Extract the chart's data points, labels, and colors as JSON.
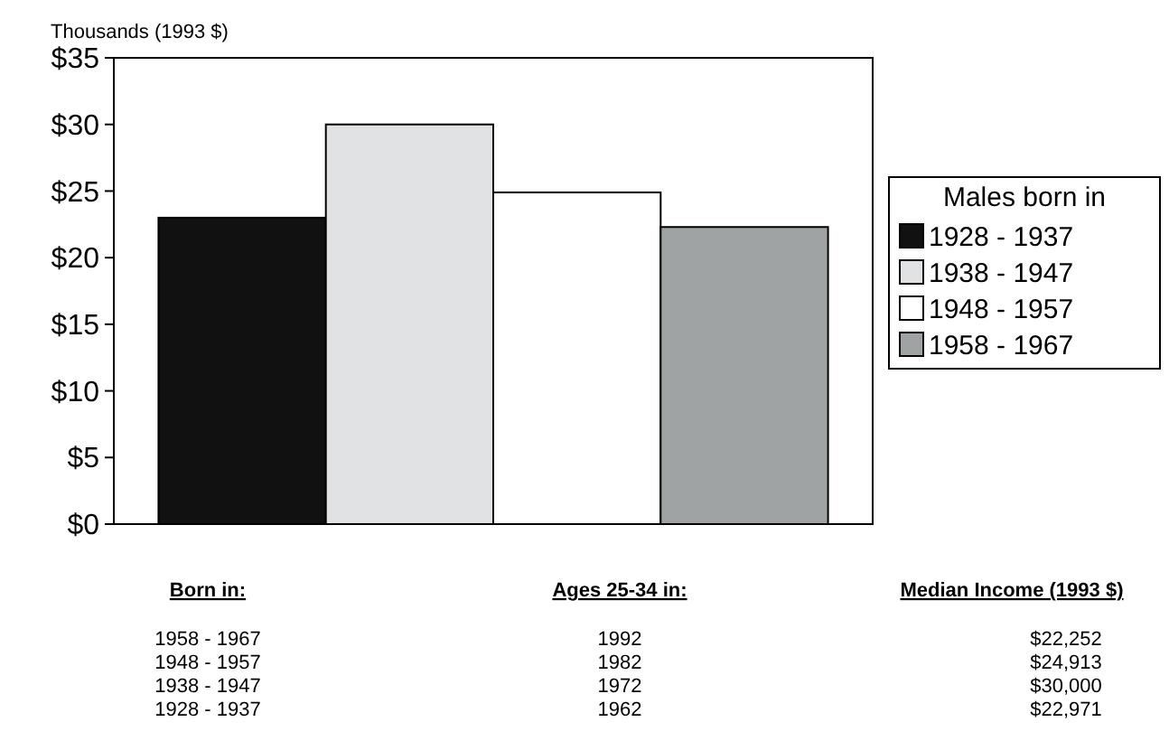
{
  "chart_data": {
    "type": "bar",
    "ylabel": "Thousands (1993 $)",
    "categories": [
      null
    ],
    "series": [
      {
        "name": "1928 - 1937",
        "color": "#111111",
        "values": [
          23.0
        ]
      },
      {
        "name": "1938 - 1947",
        "color": "#e0e2e4",
        "values": [
          30.0
        ]
      },
      {
        "name": "1948 - 1957",
        "color": "#ffffff",
        "values": [
          24.9
        ]
      },
      {
        "name": "1958 - 1967",
        "color": "#9fa3a3",
        "values": [
          22.3
        ]
      }
    ],
    "ylim": [
      0,
      35
    ],
    "yticks": [
      {
        "value": 0,
        "label": "$0"
      },
      {
        "value": 5,
        "label": "$5"
      },
      {
        "value": 10,
        "label": "$10"
      },
      {
        "value": 15,
        "label": "$15"
      },
      {
        "value": 20,
        "label": "$20"
      },
      {
        "value": 25,
        "label": "$25"
      },
      {
        "value": 30,
        "label": "$30"
      },
      {
        "value": 35,
        "label": "$35"
      }
    ],
    "legend": "right",
    "legend_title": "Males born in",
    "annotations": [
      "Born in:",
      "Ages 25-34 in:",
      "Median Income (1993 $)",
      "1958 - 1967",
      "1992",
      "$22,252",
      "1948 - 1957",
      "1982",
      "$24,913",
      "1938 - 1947",
      "1972",
      "$30,000",
      "1928 - 1937",
      "1962",
      "$22,971"
    ]
  }
}
